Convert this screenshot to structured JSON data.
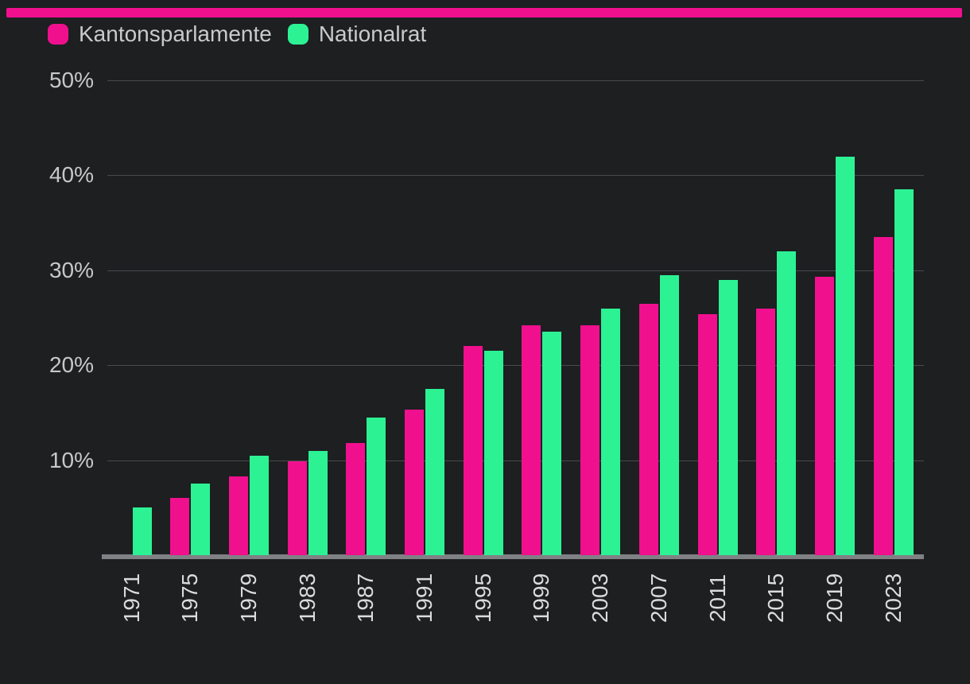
{
  "page": {
    "background": "#1d1f21",
    "topbar_color": "#f0108e"
  },
  "legend": {
    "items": [
      {
        "label": "Kantonsparlamente",
        "color": "#f0108e"
      },
      {
        "label": "Nationalrat",
        "color": "#2cf294"
      }
    ]
  },
  "chart_data": {
    "type": "bar",
    "title": "",
    "xlabel": "",
    "ylabel": "",
    "categories": [
      "1971",
      "1975",
      "1979",
      "1983",
      "1987",
      "1991",
      "1995",
      "1999",
      "2003",
      "2007",
      "2011",
      "2015",
      "2019",
      "2023"
    ],
    "series": [
      {
        "name": "Kantonsparlamente",
        "color": "#f0108e",
        "values": [
          0,
          6.0,
          8.3,
          9.9,
          11.8,
          15.3,
          22.0,
          24.2,
          24.2,
          26.5,
          25.4,
          26.0,
          29.3,
          33.5
        ]
      },
      {
        "name": "Nationalrat",
        "color": "#2cf294",
        "values": [
          5.0,
          7.5,
          10.5,
          11.0,
          14.5,
          17.5,
          21.5,
          23.5,
          26.0,
          29.5,
          29.0,
          32.0,
          42.0,
          38.5
        ]
      }
    ],
    "unit": "%",
    "ylim": [
      0,
      50
    ],
    "grid": true,
    "legend_position": "top-left",
    "yticks": [
      {
        "value": 50,
        "label": "50%"
      },
      {
        "value": 40,
        "label": "40%"
      },
      {
        "value": 30,
        "label": "30%"
      },
      {
        "value": 20,
        "label": "20%"
      },
      {
        "value": 10,
        "label": "10%"
      }
    ]
  }
}
